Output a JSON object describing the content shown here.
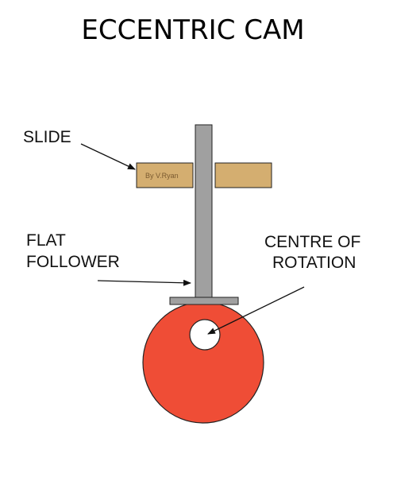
{
  "title": "ECCENTRIC CAM",
  "labels": {
    "slide": "SLIDE",
    "flat_follower_line1": "FLAT",
    "flat_follower_line2": "FOLLOWER",
    "centre_line1": "CENTRE OF",
    "centre_line2": "ROTATION"
  },
  "credit": "By V.Ryan",
  "colors": {
    "cam": "#ef4d36",
    "slide": "#d4ae70",
    "follower": "#a0a0a0",
    "outline": "#222222",
    "hole": "#ffffff"
  }
}
